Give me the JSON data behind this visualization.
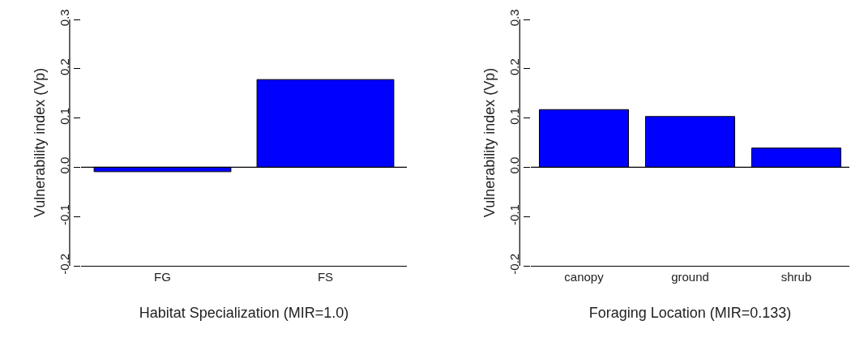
{
  "chart_data": [
    {
      "type": "bar",
      "categories": [
        "FG",
        "FS"
      ],
      "values": [
        -0.009,
        0.178
      ],
      "color": "#0000ff",
      "xlabel": "Habitat Specialization (MIR=1.0)",
      "ylabel": "Vulnerability index (Vp)",
      "ylim": [
        -0.2,
        0.3
      ],
      "yticks": [
        -0.2,
        -0.1,
        {
          "value": 0,
          "label": "0.0"
        },
        0.1,
        0.2,
        0.3
      ],
      "ref_lines": [
        {
          "axis": "y",
          "value": 0,
          "color": "#000000"
        }
      ]
    },
    {
      "type": "bar",
      "categories": [
        "canopy",
        "ground",
        "shrub"
      ],
      "values": [
        0.117,
        0.103,
        0.039
      ],
      "color": "#0000ff",
      "xlabel": "Foraging Location (MIR=0.133)",
      "ylabel": "Vulnerability index (Vp)",
      "ylim": [
        -0.2,
        0.3
      ],
      "yticks": [
        -0.2,
        -0.1,
        {
          "value": 0,
          "label": "0.0"
        },
        0.1,
        0.2,
        0.3
      ],
      "ref_lines": [
        {
          "axis": "y",
          "value": 0,
          "color": "#000000"
        }
      ]
    }
  ]
}
